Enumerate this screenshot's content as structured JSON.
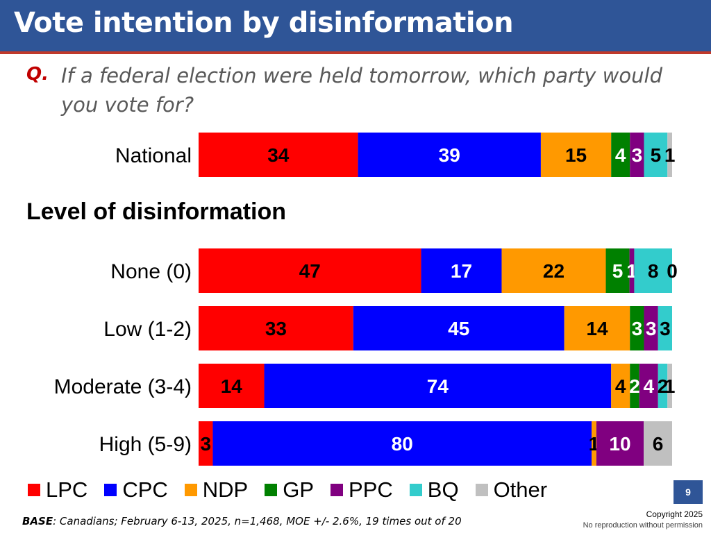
{
  "header": {
    "title": "Vote intention by disinformation"
  },
  "question": {
    "marker": "Q.",
    "text": "If a federal election were held tomorrow, which party would you vote for?"
  },
  "section_heading": "Level of disinformation",
  "chart_data": {
    "type": "bar",
    "orientation": "horizontal",
    "stacked": true,
    "categories": [
      "National",
      "None (0)",
      "Low (1-2)",
      "Moderate (3-4)",
      "High (5-9)"
    ],
    "series": [
      {
        "name": "LPC",
        "color": "#ff0000",
        "values": [
          34,
          47,
          33,
          14,
          3
        ]
      },
      {
        "name": "CPC",
        "color": "#0000ff",
        "values": [
          39,
          17,
          45,
          74,
          80
        ]
      },
      {
        "name": "NDP",
        "color": "#ff9900",
        "values": [
          15,
          22,
          14,
          4,
          1
        ]
      },
      {
        "name": "GP",
        "color": "#008000",
        "values": [
          4,
          5,
          3,
          2,
          0
        ]
      },
      {
        "name": "PPC",
        "color": "#800080",
        "values": [
          3,
          1,
          3,
          4,
          10
        ]
      },
      {
        "name": "BQ",
        "color": "#33cccc",
        "values": [
          5,
          8,
          3,
          2,
          0
        ]
      },
      {
        "name": "Other",
        "color": "#c0c0c0",
        "values": [
          1,
          0,
          0,
          1,
          6
        ]
      }
    ],
    "data_labels": [
      [
        "34",
        "39",
        "15",
        "4",
        "3",
        "5",
        "1"
      ],
      [
        "47",
        "17",
        "22",
        "5",
        "1",
        "8",
        "0"
      ],
      [
        "33",
        "45",
        "14",
        "3",
        "3",
        "3",
        ""
      ],
      [
        "14",
        "74",
        "4",
        "2",
        "4",
        "2",
        "1"
      ],
      [
        "3",
        "80",
        "1",
        "",
        "10",
        "",
        "6"
      ]
    ],
    "label_colors": [
      "#000000",
      "#ffffff",
      "#000000",
      "#ffffff",
      "#ffffff",
      "#000000",
      "#000000"
    ],
    "xlim": [
      0,
      100
    ],
    "grid": false,
    "legend": "bottom"
  },
  "legend_items": [
    {
      "label": "LPC",
      "color": "#ff0000"
    },
    {
      "label": "CPC",
      "color": "#0000ff"
    },
    {
      "label": "NDP",
      "color": "#ff9900"
    },
    {
      "label": "GP",
      "color": "#008000"
    },
    {
      "label": "PPC",
      "color": "#800080"
    },
    {
      "label": "BQ",
      "color": "#33cccc"
    },
    {
      "label": "Other",
      "color": "#c0c0c0"
    }
  ],
  "page_number": "9",
  "base": {
    "label": "BASE",
    "text": ": Canadians; February 6-13, 2025, n=1,468,  MOE +/- 2.6%, 19 times out of 20"
  },
  "copyright": {
    "line1": "Copyright 2025",
    "line2": "No reproduction without permission"
  }
}
